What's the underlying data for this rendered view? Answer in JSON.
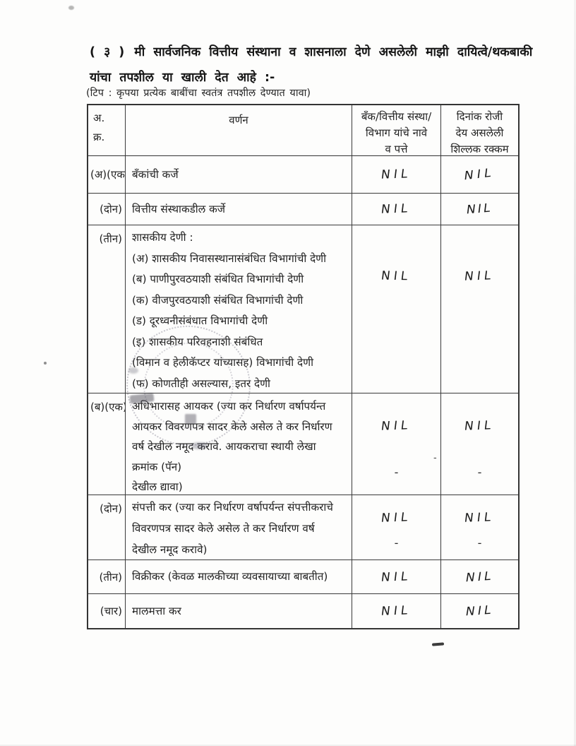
{
  "heading": {
    "number": "( ३ )",
    "line1": "मी सार्वजनिक वित्तीय संस्थाना व शासनाला देणे असलेली माझी दायित्वे/थकबाकी",
    "line2": "यांचा तपशील या खाली देत आहे :-",
    "note": "(टिप : कृपया प्रत्येक बाबींचा स्वतंत्र तपशील देण्यात यावा)"
  },
  "table": {
    "headers": [
      "अ.\nक्र.",
      "वर्णन",
      "बँक/वित्तीय संस्था/\nविभाग यांचे नावे\nव पत्ते",
      "दिनांक रोजी\nदेय असलेली\nशिल्लक रक्कम"
    ],
    "rows": [
      {
        "group": "(अ)",
        "item": "(एक)",
        "desc": "बँकांची कर्जे",
        "institution": "NIL",
        "amount": "NIL"
      },
      {
        "group": "",
        "item": "(दोन)",
        "desc": "वित्तीय संस्थाकडील कर्जे",
        "institution": "NIL",
        "amount": "NIL"
      },
      {
        "group": "",
        "item": "(तीन)",
        "desc": "शासकीय देणी :\n(अ) शासकीय निवासस्थानासंबंधित विभागांची देणी\n(ब) पाणीपुरवठयाशी संबंधित विभागांची देणी\n(क) वीजपुरवठयाशी संबंधित विभागांची देणी\n(ड) दूरध्वनीसंबंधात विभागांची देणी\n(इ) शासकीय परिवहनाशी संबंधित\n  (विमान व हेलीकॅप्टर यांच्यासह) विभागांची देणी\n(फ) कोणतीही असल्यास, इतर देणी",
        "institution": "NIL",
        "amount": "NIL"
      },
      {
        "group": "(ब)",
        "item": "(एक)",
        "desc": "अधिभारासह आयकर (ज्या कर निर्धारण वर्षापर्यन्त\nआयकर विवरणपत्र सादर केले असेल ते कर निर्धारण\nवर्ष देखील नमूद करावे. आयकराचा स्थायी लेखा\nक्रमांक (पॅन)\nदेखील द्यावा)",
        "institution": "NIL",
        "amount": "NIL",
        "institution_dash": "-",
        "amount_dash": "-",
        "stray_dash": "-"
      },
      {
        "group": "",
        "item": "(दोन)",
        "desc": "संपत्ती कर (ज्या कर निर्धारण वर्षापर्यन्त संपत्तीकराचे\nविवरणपत्र सादर केले असेल ते कर निर्धारण वर्ष\nदेखील नमूद करावे)",
        "institution": "NIL",
        "amount": "NIL",
        "institution_dash": "-",
        "amount_dash": "-"
      },
      {
        "group": "",
        "item": "(तीन)",
        "desc": "विक्रीकर (केवळ मालकीच्या व्यवसायाच्या बाबतीत)",
        "institution": "NIL",
        "amount": "NIL"
      },
      {
        "group": "",
        "item": "(चार)",
        "desc": "मालमत्ता कर",
        "institution": "NIL",
        "amount": "NIL"
      }
    ]
  }
}
